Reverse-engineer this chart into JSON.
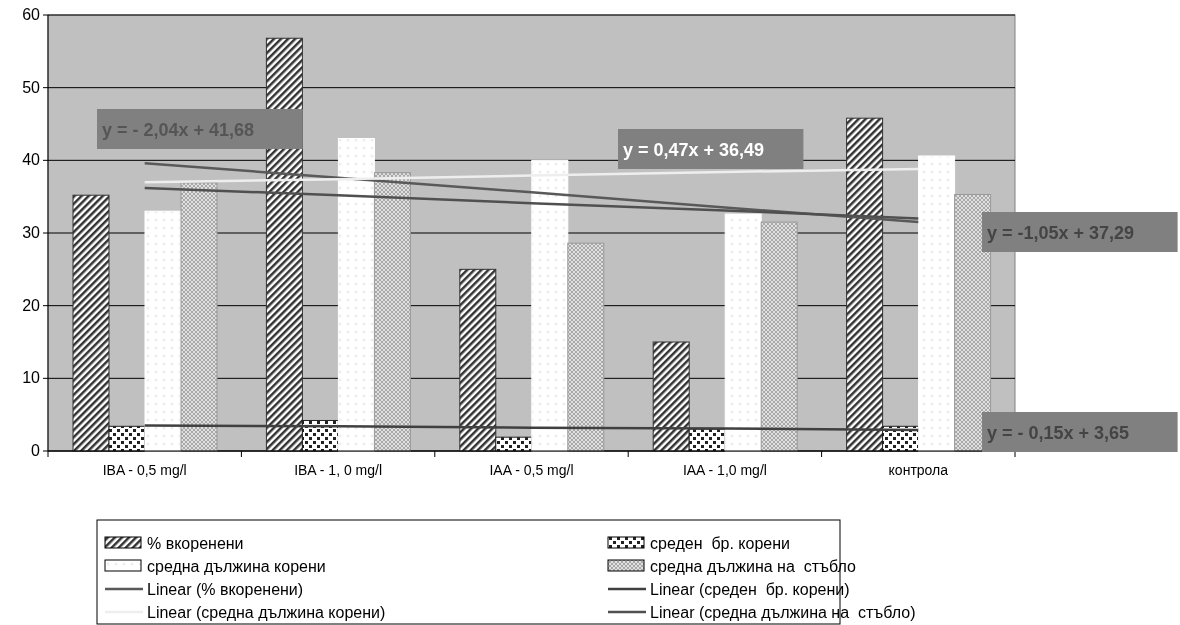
{
  "chart_data": {
    "type": "bar",
    "categories": [
      "IBA - 0,5 mg/l",
      "IBA - 1, 0 mg/l",
      "IAA - 0,5 mg/l",
      "IAA - 1,0 mg/l",
      "контрола"
    ],
    "ylim": [
      0,
      60
    ],
    "yticks": [
      0,
      10,
      20,
      30,
      40,
      50,
      60
    ],
    "grid": "y",
    "legend": "bottom",
    "series": [
      {
        "name": "% вкоренени",
        "color": "#333333",
        "values": [
          35.2,
          56.8,
          25,
          15,
          45.8
        ]
      },
      {
        "name": "среден  бр. корени",
        "color": "#222222",
        "values": [
          3.4,
          4.2,
          1.9,
          3.0,
          3.4
        ]
      },
      {
        "name": "средна дължина корени",
        "color": "#ffffff",
        "values": [
          33,
          43,
          40,
          32.6,
          40.6
        ]
      },
      {
        "name": "средна дължина на  стъбло",
        "color": "#999999",
        "values": [
          36.9,
          38.3,
          28.6,
          31.5,
          35.3
        ]
      },
      {
        "name": "Linear (% вкоренени)",
        "type": "line",
        "color": "#595959",
        "values": [
          39.6,
          37.6,
          35.6,
          33.5,
          31.5
        ]
      },
      {
        "name": "Linear (среден  бр. корени)",
        "type": "line",
        "color": "#404040",
        "values": [
          3.5,
          3.4,
          3.2,
          3.1,
          2.9
        ]
      },
      {
        "name": "Linear (средна дължина корени)",
        "type": "line",
        "color": "#eeeeee",
        "values": [
          37,
          37.4,
          37.9,
          38.4,
          38.8
        ]
      },
      {
        "name": "Linear (средна дължина на  стъбло)",
        "type": "line",
        "color": "#505050",
        "values": [
          36.2,
          35.2,
          34.1,
          33.1,
          32
        ]
      }
    ],
    "annotations": [
      "y = - 2,04x + 41,68",
      "y = 0,47x + 36,49",
      "y = -1,05x + 37,29",
      "y = - 0,15x + 3,65"
    ]
  }
}
